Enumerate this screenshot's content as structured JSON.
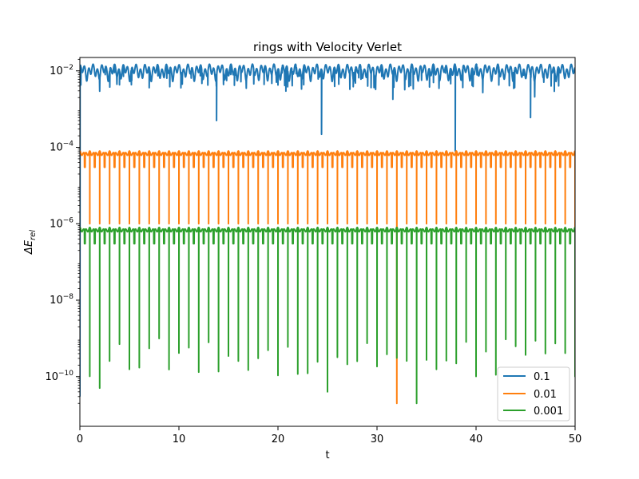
{
  "chart_data": {
    "type": "line",
    "title": "rings with Velocity Verlet",
    "xlabel": "t",
    "ylabel": "ΔE_rel",
    "ylabel_main": "ΔE",
    "ylabel_sub": "rel",
    "x_scale": "linear",
    "y_scale": "log",
    "xlim": [
      0,
      50
    ],
    "ylim_log10": [
      -11.3,
      -1.65
    ],
    "x_ticks": [
      0,
      10,
      20,
      30,
      40,
      50
    ],
    "x_tick_labels": [
      "0",
      "10",
      "20",
      "30",
      "40",
      "50"
    ],
    "y_ticks_exponents": [
      -2,
      -4,
      -6,
      -8,
      -10
    ],
    "y_tick_base": "10",
    "y_tick_exponent_labels": [
      "−2",
      "−4",
      "−6",
      "−8",
      "−10"
    ],
    "grid": false,
    "legend_position": "lower right",
    "series": [
      {
        "name": "0.1",
        "color": "#1f77b4",
        "plateau": 0.015,
        "oscillation": "irregular, roughly 0.004 to 0.015",
        "notable_dips": [
          [
            13.8,
            0.0005
          ],
          [
            24.4,
            0.00022
          ],
          [
            31.6,
            0.0018
          ],
          [
            37.9,
            8e-05
          ],
          [
            45.5,
            0.0006
          ]
        ]
      },
      {
        "name": "0.01",
        "color": "#ff7f0e",
        "plateau": 8e-05,
        "trough": 3e-05,
        "period": 1.0,
        "dips_each_period_to": 1e-06,
        "notable_dips": [
          [
            32.0,
            2e-11
          ]
        ]
      },
      {
        "name": "0.001",
        "color": "#2ca02c",
        "plateau": 8e-07,
        "trough": 3e-07,
        "period": 1.0,
        "dip_depths": "1e-10 to 1e-9 at each integer t",
        "notable_dips": [
          [
            2.0,
            5e-11
          ],
          [
            25.0,
            4e-11
          ],
          [
            34.0,
            2e-11
          ]
        ]
      }
    ]
  }
}
